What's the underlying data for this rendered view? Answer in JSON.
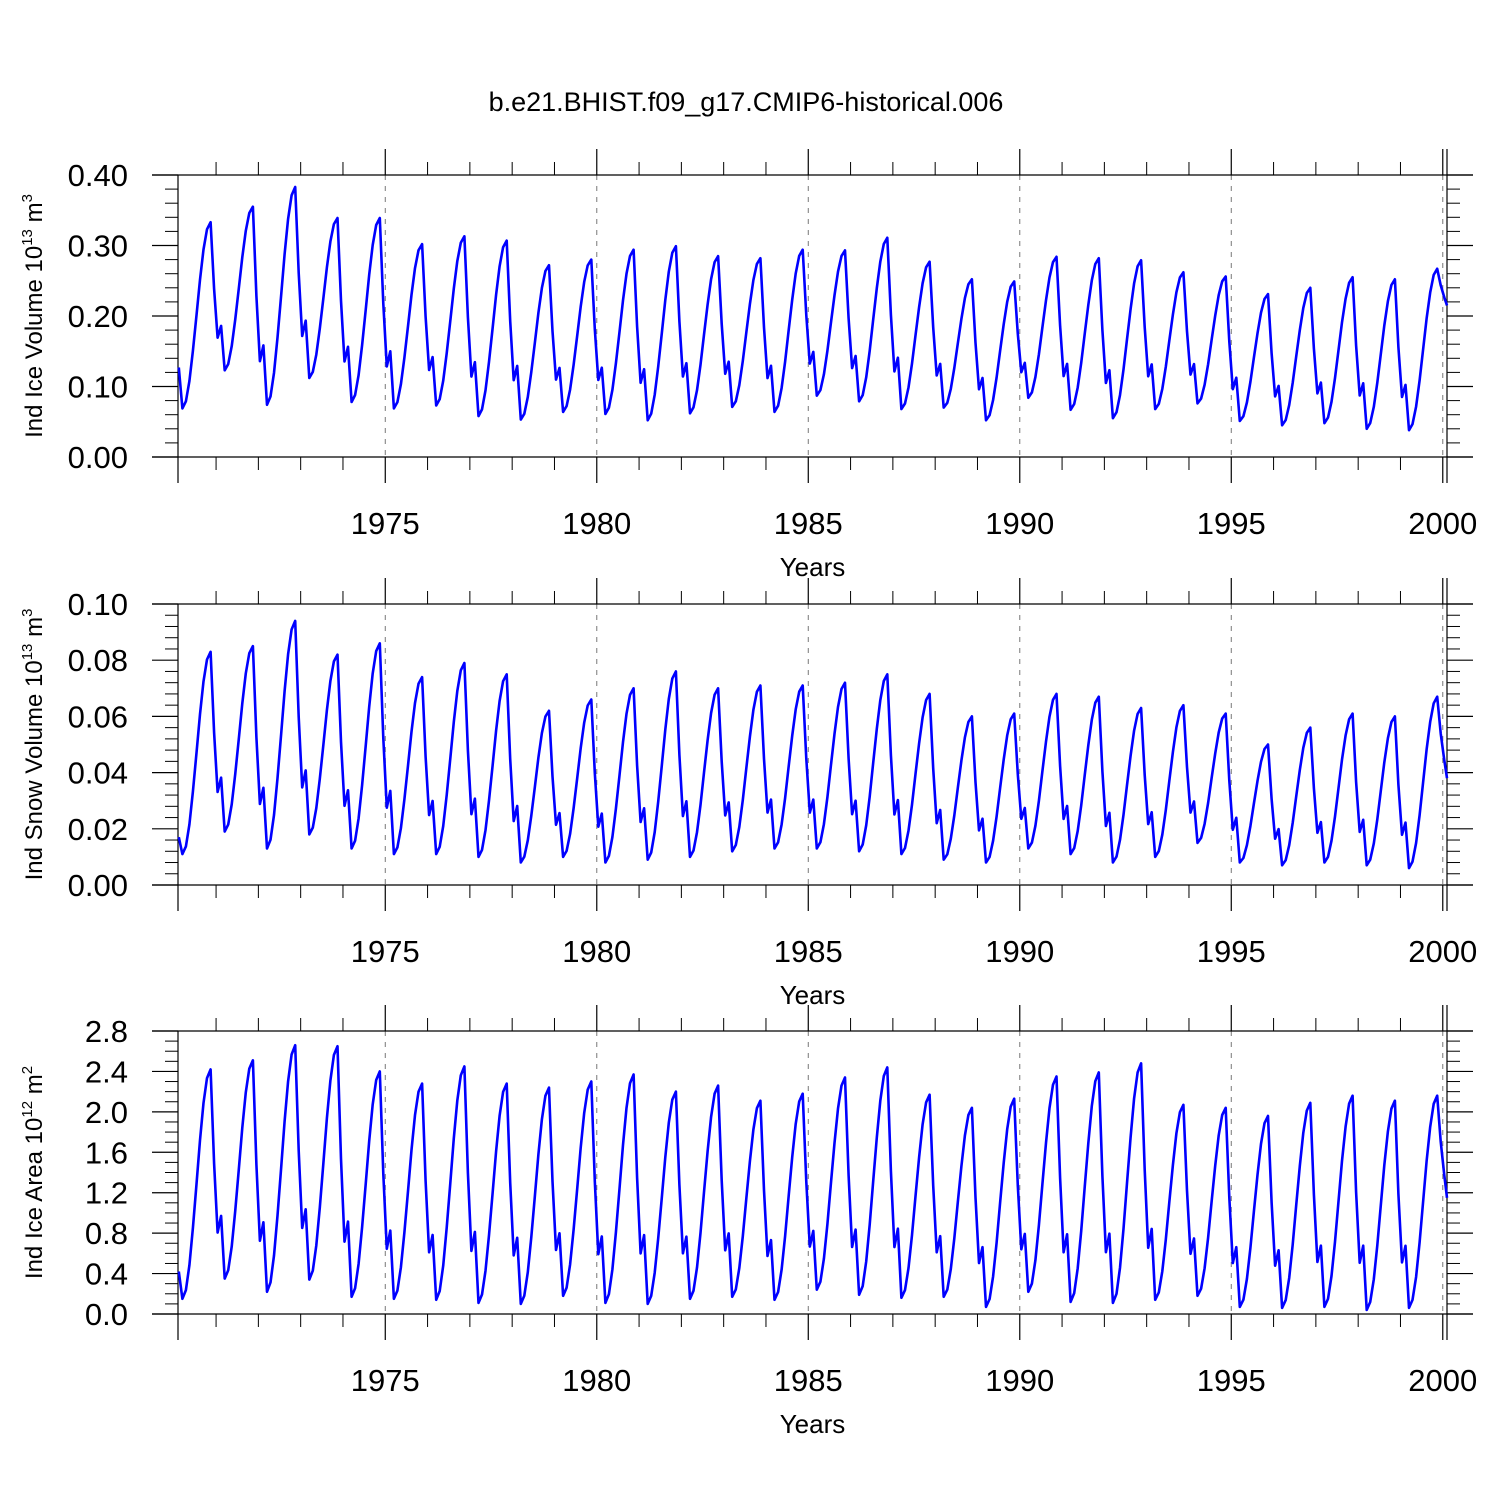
{
  "figure_title": "b.e21.BHIST.f09_g17.CMIP6-historical.006",
  "chart_data": [
    {
      "type": "line",
      "id": "ice-volume",
      "title": "b.e21.BHIST.f09_g17.CMIP6-historical.006",
      "xlabel": "Years",
      "ylabel": {
        "text": "Ind Ice Volume 10",
        "exp": "13",
        "unit": " m",
        "unit_exp": "3"
      },
      "xlim": [
        1970.1,
        2000.1
      ],
      "ylim": [
        0.0,
        0.4
      ],
      "x_ticks": [
        1975,
        1980,
        1985,
        1990,
        1995,
        2000
      ],
      "y_ticks": [
        "0.00",
        "0.10",
        "0.20",
        "0.30",
        "0.40"
      ],
      "grid_x": true,
      "line_color": "#0000ff",
      "series": [
        {
          "x_start": 1970.12,
          "x_step": 0.08333,
          "peaks": [
            0.333,
            0.355,
            0.383,
            0.339,
            0.339,
            0.302,
            0.313,
            0.307,
            0.272,
            0.28,
            0.294,
            0.299,
            0.285,
            0.282,
            0.294,
            0.293,
            0.311,
            0.277,
            0.252,
            0.249,
            0.284,
            0.282,
            0.279,
            0.262,
            0.256,
            0.231,
            0.24,
            0.255,
            0.252,
            0.267
          ],
          "troughs": [
            0.069,
            0.123,
            0.074,
            0.112,
            0.078,
            0.069,
            0.073,
            0.058,
            0.053,
            0.064,
            0.061,
            0.052,
            0.062,
            0.071,
            0.064,
            0.087,
            0.079,
            0.068,
            0.07,
            0.052,
            0.084,
            0.067,
            0.055,
            0.068,
            0.076,
            0.051,
            0.045,
            0.048,
            0.04,
            0.038
          ],
          "start_value": 0.127,
          "end_value": 0.215
        }
      ]
    },
    {
      "type": "line",
      "id": "snow-volume",
      "xlabel": "Years",
      "ylabel": {
        "text": "Ind Snow Volume 10",
        "exp": "13",
        "unit": " m",
        "unit_exp": "3"
      },
      "xlim": [
        1970.1,
        2000.1
      ],
      "ylim": [
        0.0,
        0.1
      ],
      "x_ticks": [
        1975,
        1980,
        1985,
        1990,
        1995,
        2000
      ],
      "y_ticks": [
        "0.00",
        "0.02",
        "0.04",
        "0.06",
        "0.08",
        "0.10"
      ],
      "grid_x": true,
      "line_color": "#0000ff",
      "series": [
        {
          "x_start": 1970.12,
          "x_step": 0.08333,
          "peaks": [
            0.083,
            0.085,
            0.094,
            0.082,
            0.086,
            0.074,
            0.079,
            0.075,
            0.062,
            0.066,
            0.07,
            0.076,
            0.07,
            0.071,
            0.071,
            0.072,
            0.075,
            0.068,
            0.06,
            0.061,
            0.068,
            0.067,
            0.063,
            0.064,
            0.061,
            0.05,
            0.056,
            0.061,
            0.06,
            0.067
          ],
          "troughs": [
            0.011,
            0.019,
            0.013,
            0.018,
            0.013,
            0.011,
            0.011,
            0.01,
            0.008,
            0.01,
            0.008,
            0.009,
            0.01,
            0.012,
            0.013,
            0.013,
            0.012,
            0.011,
            0.009,
            0.008,
            0.013,
            0.011,
            0.008,
            0.01,
            0.015,
            0.008,
            0.007,
            0.008,
            0.007,
            0.006
          ],
          "start_value": 0.017,
          "end_value": 0.038
        }
      ]
    },
    {
      "type": "line",
      "id": "ice-area",
      "xlabel": "Years",
      "ylabel": {
        "text": "Ind Ice Area 10",
        "exp": "12",
        "unit": " m",
        "unit_exp": "2"
      },
      "xlim": [
        1970.1,
        2000.1
      ],
      "ylim": [
        0.0,
        2.8
      ],
      "x_ticks": [
        1975,
        1980,
        1985,
        1990,
        1995,
        2000
      ],
      "y_ticks": [
        "0.0",
        "0.4",
        "0.8",
        "1.2",
        "1.6",
        "2.0",
        "2.4",
        "2.8"
      ],
      "grid_x": true,
      "line_color": "#0000ff",
      "series": [
        {
          "x_start": 1970.12,
          "x_step": 0.08333,
          "peaks": [
            2.42,
            2.51,
            2.66,
            2.65,
            2.4,
            2.28,
            2.45,
            2.28,
            2.24,
            2.3,
            2.37,
            2.2,
            2.26,
            2.11,
            2.18,
            2.34,
            2.44,
            2.17,
            2.04,
            2.13,
            2.35,
            2.39,
            2.48,
            2.07,
            2.04,
            1.96,
            2.09,
            2.16,
            2.11,
            2.16
          ],
          "troughs": [
            0.15,
            0.35,
            0.22,
            0.34,
            0.17,
            0.15,
            0.14,
            0.11,
            0.1,
            0.18,
            0.11,
            0.1,
            0.15,
            0.17,
            0.14,
            0.24,
            0.19,
            0.16,
            0.17,
            0.07,
            0.22,
            0.12,
            0.11,
            0.14,
            0.18,
            0.07,
            0.06,
            0.07,
            0.04,
            0.06
          ],
          "start_value": 0.42,
          "end_value": 1.15
        }
      ]
    }
  ]
}
